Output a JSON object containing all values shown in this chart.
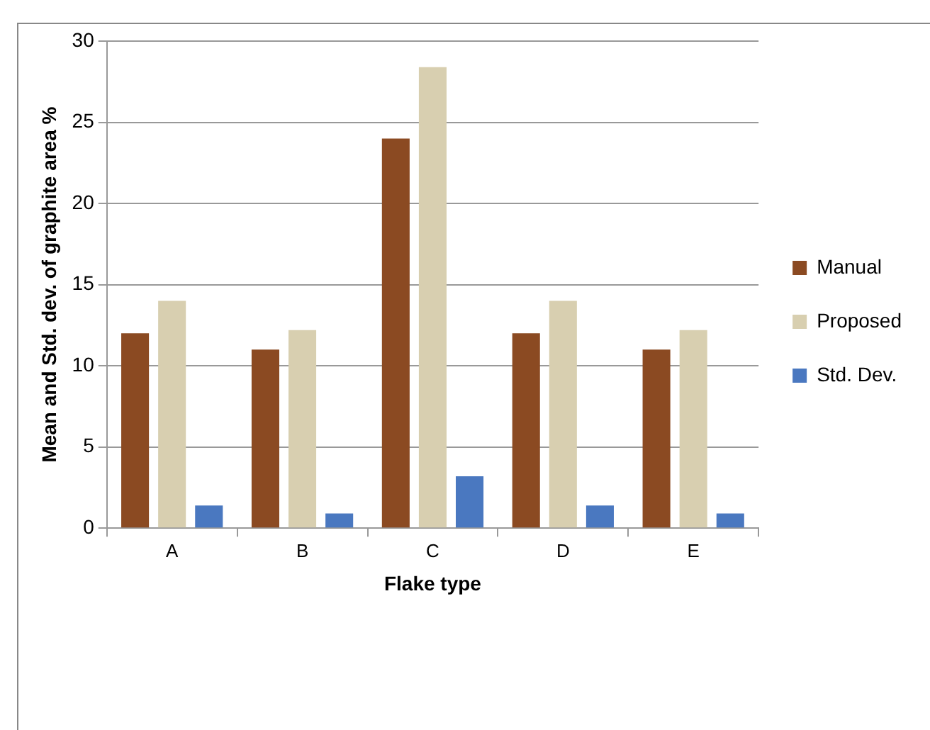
{
  "chart_data": {
    "type": "bar",
    "xlabel": "Flake type",
    "ylabel": "Mean and Std. dev. of graphite area %",
    "categories": [
      "A",
      "B",
      "C",
      "D",
      "E"
    ],
    "series": [
      {
        "name": "Manual",
        "color": "#8b4a22",
        "values": [
          12,
          11,
          24,
          12,
          11
        ]
      },
      {
        "name": "Proposed",
        "color": "#d8cfb0",
        "values": [
          14,
          12.2,
          28.4,
          14,
          12.2
        ]
      },
      {
        "name": "Std. Dev.",
        "color": "#4a78c0",
        "values": [
          1.4,
          0.9,
          3.2,
          1.4,
          0.9
        ]
      }
    ],
    "ylim": [
      0,
      30
    ],
    "yticks": [
      0,
      5,
      10,
      15,
      20,
      25,
      30
    ],
    "grid": "y",
    "legend": "right"
  }
}
